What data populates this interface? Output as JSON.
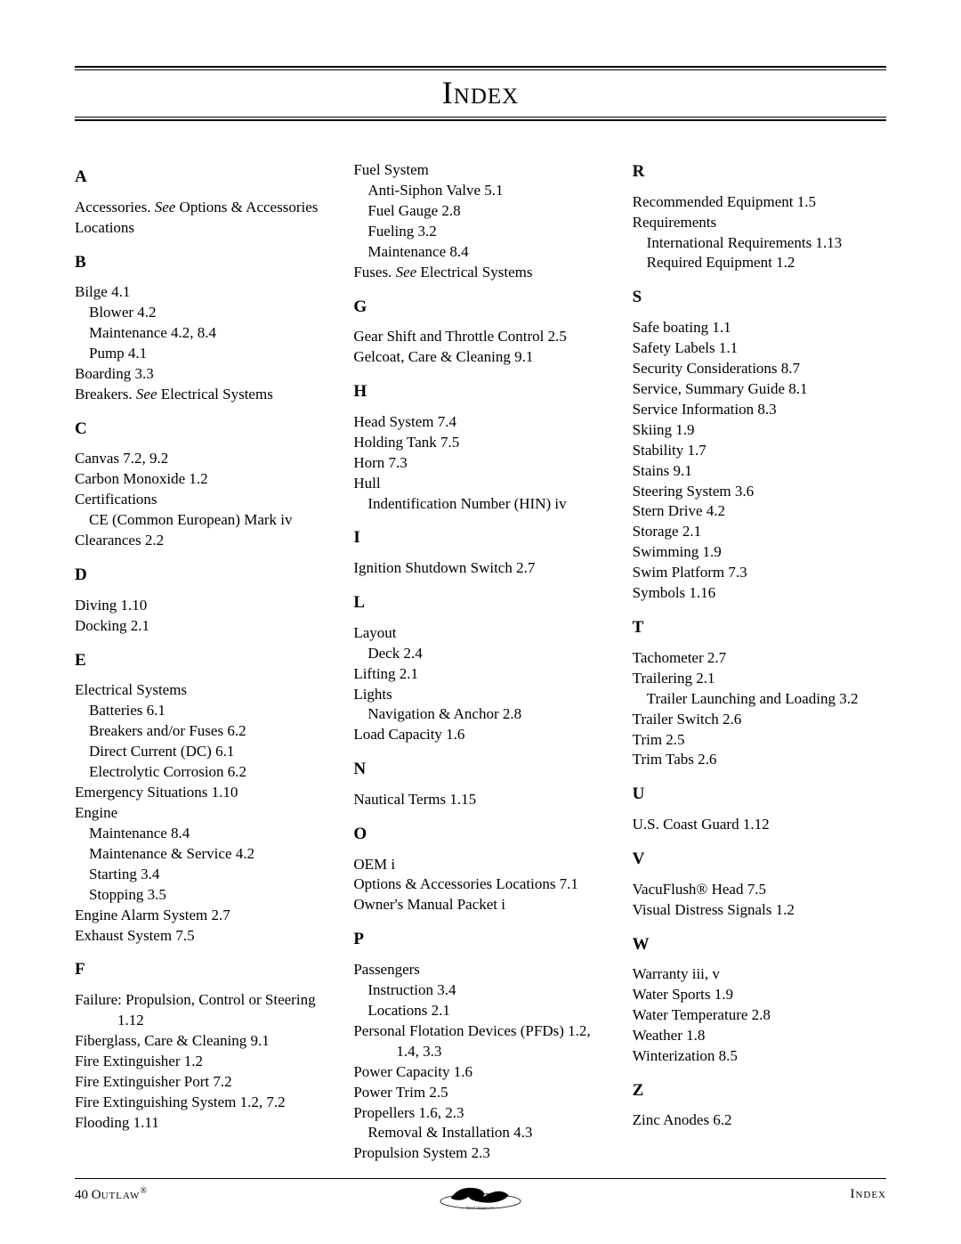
{
  "title": "Index",
  "colors": {
    "text": "#000000",
    "rule": "#000000",
    "bg": "#ffffff"
  },
  "typography": {
    "family": "Times New Roman",
    "body_size_pt": 12,
    "title_size_pt": 28
  },
  "footer": {
    "left_prefix": "40 O",
    "left_model": "utlaw",
    "left_reg": "®",
    "right": "Index",
    "logo_name": "baja-logo"
  },
  "sections": [
    {
      "letter": "A",
      "entries": [
        {
          "t": "Accessories. ",
          "see": "See ",
          "rest": "Options & Accessories Locations",
          "cls": "entry"
        }
      ]
    },
    {
      "letter": "B",
      "entries": [
        {
          "t": "Bilge  4.1",
          "cls": "entry"
        },
        {
          "t": "Blower  4.2",
          "cls": "sub1"
        },
        {
          "t": "Maintenance  4.2, 8.4",
          "cls": "sub1"
        },
        {
          "t": "Pump  4.1",
          "cls": "sub1"
        },
        {
          "t": "Boarding  3.3",
          "cls": "entry"
        },
        {
          "t": "Breakers. ",
          "see": "See ",
          "rest": "Electrical Systems",
          "cls": "entry"
        }
      ]
    },
    {
      "letter": "C",
      "entries": [
        {
          "t": "Canvas  7.2, 9.2",
          "cls": "entry"
        },
        {
          "t": "Carbon Monoxide  1.2",
          "cls": "entry"
        },
        {
          "t": "Certifications",
          "cls": "entry"
        },
        {
          "t": "CE (Common European) Mark  iv",
          "cls": "sub1"
        },
        {
          "t": "Clearances  2.2",
          "cls": "entry"
        }
      ]
    },
    {
      "letter": "D",
      "entries": [
        {
          "t": "Diving  1.10",
          "cls": "entry"
        },
        {
          "t": "Docking  2.1",
          "cls": "entry"
        }
      ]
    },
    {
      "letter": "E",
      "entries": [
        {
          "t": "Electrical Systems",
          "cls": "entry"
        },
        {
          "t": "Batteries  6.1",
          "cls": "sub1"
        },
        {
          "t": "Breakers and/or Fuses  6.2",
          "cls": "sub1"
        },
        {
          "t": "Direct Current (DC)  6.1",
          "cls": "sub1"
        },
        {
          "t": "Electrolytic Corrosion  6.2",
          "cls": "sub1"
        },
        {
          "t": "Emergency Situations  1.10",
          "cls": "entry"
        },
        {
          "t": "Engine",
          "cls": "entry"
        },
        {
          "t": "Maintenance  8.4",
          "cls": "sub1"
        },
        {
          "t": "Maintenance & Service  4.2",
          "cls": "sub1"
        },
        {
          "t": "Starting  3.4",
          "cls": "sub1"
        },
        {
          "t": "Stopping  3.5",
          "cls": "sub1"
        },
        {
          "t": "Engine Alarm System  2.7",
          "cls": "entry"
        },
        {
          "t": "Exhaust System  7.5",
          "cls": "entry"
        }
      ]
    },
    {
      "letter": "F",
      "entries": [
        {
          "t": "Failure: Propulsion, Control or Steering  1.12",
          "cls": "entry",
          "hang": true
        },
        {
          "t": "Fiberglass, Care & Cleaning  9.1",
          "cls": "entry"
        },
        {
          "t": "Fire Extinguisher  1.2",
          "cls": "entry"
        },
        {
          "t": "Fire Extinguisher Port  7.2",
          "cls": "entry"
        },
        {
          "t": "Fire Extinguishing System  1.2, 7.2",
          "cls": "entry"
        },
        {
          "t": "Flooding  1.11",
          "cls": "entry"
        }
      ]
    },
    {
      "letter": "",
      "entries": [
        {
          "t": "Fuel System",
          "cls": "entry"
        },
        {
          "t": "Anti-Siphon Valve  5.1",
          "cls": "sub1"
        },
        {
          "t": "Fuel Gauge  2.8",
          "cls": "sub1"
        },
        {
          "t": "Fueling  3.2",
          "cls": "sub1"
        },
        {
          "t": "Maintenance  8.4",
          "cls": "sub1"
        },
        {
          "t": "Fuses. ",
          "see": "See ",
          "rest": "Electrical Systems",
          "cls": "entry"
        }
      ]
    },
    {
      "letter": "G",
      "entries": [
        {
          "t": "Gear Shift and Throttle Control  2.5",
          "cls": "entry"
        },
        {
          "t": "Gelcoat, Care & Cleaning  9.1",
          "cls": "entry"
        }
      ]
    },
    {
      "letter": "H",
      "entries": [
        {
          "t": "Head System  7.4",
          "cls": "entry"
        },
        {
          "t": "Holding Tank  7.5",
          "cls": "entry"
        },
        {
          "t": "Horn  7.3",
          "cls": "entry"
        },
        {
          "t": "Hull",
          "cls": "entry"
        },
        {
          "t": "Indentification Number (HIN)  iv",
          "cls": "sub1"
        }
      ]
    },
    {
      "letter": "I",
      "entries": [
        {
          "t": "Ignition Shutdown Switch  2.7",
          "cls": "entry"
        }
      ]
    },
    {
      "letter": "L",
      "entries": [
        {
          "t": "Layout",
          "cls": "entry"
        },
        {
          "t": "Deck  2.4",
          "cls": "sub1"
        },
        {
          "t": "Lifting  2.1",
          "cls": "entry"
        },
        {
          "t": "Lights",
          "cls": "entry"
        },
        {
          "t": "Navigation & Anchor  2.8",
          "cls": "sub1"
        },
        {
          "t": "Load Capacity  1.6",
          "cls": "entry"
        }
      ]
    },
    {
      "letter": "N",
      "entries": [
        {
          "t": "Nautical Terms  1.15",
          "cls": "entry"
        }
      ]
    },
    {
      "letter": "O",
      "entries": [
        {
          "t": "OEM  i",
          "cls": "entry"
        },
        {
          "t": "Options & Accessories Locations  7.1",
          "cls": "entry"
        },
        {
          "t": "Owner's Manual Packet  i",
          "cls": "entry"
        }
      ]
    },
    {
      "letter": "P",
      "entries": [
        {
          "t": "Passengers",
          "cls": "entry"
        },
        {
          "t": "Instruction  3.4",
          "cls": "sub1"
        },
        {
          "t": "Locations  2.1",
          "cls": "sub1"
        },
        {
          "t": "Personal Flotation Devices (PFDs)  1.2, 1.4, 3.3",
          "cls": "entry",
          "hang": true
        },
        {
          "t": "Power Capacity  1.6",
          "cls": "entry"
        },
        {
          "t": "Power Trim  2.5",
          "cls": "entry"
        },
        {
          "t": "Propellers  1.6, 2.3",
          "cls": "entry"
        },
        {
          "t": "Removal & Installation  4.3",
          "cls": "sub1"
        },
        {
          "t": "Propulsion System  2.3",
          "cls": "entry"
        }
      ]
    },
    {
      "letter": "R",
      "entries": [
        {
          "t": "Recommended Equipment  1.5",
          "cls": "entry"
        },
        {
          "t": "Requirements",
          "cls": "entry"
        },
        {
          "t": "International Requirements  1.13",
          "cls": "sub1"
        },
        {
          "t": "Required Equipment  1.2",
          "cls": "sub1"
        }
      ]
    },
    {
      "letter": "S",
      "entries": [
        {
          "t": "Safe boating  1.1",
          "cls": "entry"
        },
        {
          "t": "Safety Labels  1.1",
          "cls": "entry"
        },
        {
          "t": "Security Considerations  8.7",
          "cls": "entry"
        },
        {
          "t": "Service, Summary Guide  8.1",
          "cls": "entry"
        },
        {
          "t": "Service Information  8.3",
          "cls": "entry"
        },
        {
          "t": "Skiing  1.9",
          "cls": "entry"
        },
        {
          "t": "Stability  1.7",
          "cls": "entry"
        },
        {
          "t": "Stains  9.1",
          "cls": "entry"
        },
        {
          "t": "Steering System  3.6",
          "cls": "entry"
        },
        {
          "t": "Stern Drive  4.2",
          "cls": "entry"
        },
        {
          "t": "Storage  2.1",
          "cls": "entry"
        },
        {
          "t": "Swimming  1.9",
          "cls": "entry"
        },
        {
          "t": "Swim Platform  7.3",
          "cls": "entry"
        },
        {
          "t": "Symbols  1.16",
          "cls": "entry"
        }
      ]
    },
    {
      "letter": "T",
      "entries": [
        {
          "t": "Tachometer  2.7",
          "cls": "entry"
        },
        {
          "t": "Trailering  2.1",
          "cls": "entry"
        },
        {
          "t": "Trailer Launching and Loading  3.2",
          "cls": "sub1"
        },
        {
          "t": "Trailer Switch  2.6",
          "cls": "entry"
        },
        {
          "t": "Trim  2.5",
          "cls": "entry"
        },
        {
          "t": "Trim Tabs  2.6",
          "cls": "entry"
        }
      ]
    },
    {
      "letter": "U",
      "entries": [
        {
          "t": "U.S. Coast Guard  1.12",
          "cls": "entry"
        }
      ]
    },
    {
      "letter": "V",
      "entries": [
        {
          "t": "VacuFlush® Head  7.5",
          "cls": "entry"
        },
        {
          "t": "Visual Distress Signals  1.2",
          "cls": "entry"
        }
      ]
    },
    {
      "letter": "W",
      "entries": [
        {
          "t": "Warranty  iii, v",
          "cls": "entry"
        },
        {
          "t": "Water Sports  1.9",
          "cls": "entry"
        },
        {
          "t": "Water Temperature  2.8",
          "cls": "entry"
        },
        {
          "t": "Weather  1.8",
          "cls": "entry"
        },
        {
          "t": "Winterization  8.5",
          "cls": "entry"
        }
      ]
    },
    {
      "letter": "Z",
      "entries": [
        {
          "t": "Zinc Anodes  6.2",
          "cls": "entry"
        }
      ]
    }
  ]
}
